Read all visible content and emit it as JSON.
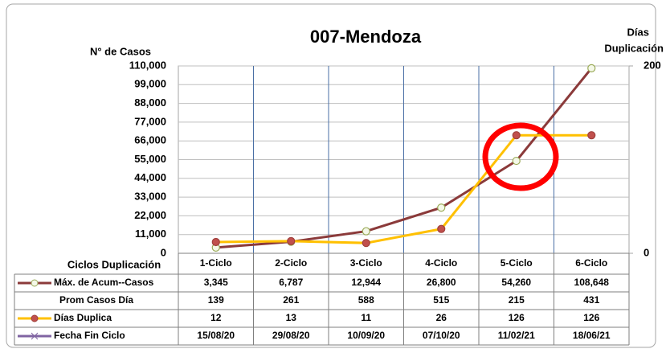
{
  "chart_data": {
    "type": "line",
    "title": "007-Mendoza",
    "ylabel": "N° de Casos",
    "y2label": [
      "Días",
      "Duplicación"
    ],
    "table_header": "Ciclos Duplicación",
    "categories": [
      "1-Ciclo",
      "2-Ciclo",
      "3-Ciclo",
      "4-Ciclo",
      "5-Ciclo",
      "6-Ciclo"
    ],
    "ylim": [
      0,
      110000
    ],
    "yticks": [
      0,
      {
        "value": 11000,
        "label": "11,000"
      },
      {
        "value": 22000,
        "label": "22,000"
      },
      {
        "value": 33000,
        "label": "33,000"
      },
      {
        "value": 44000,
        "label": "44,000"
      },
      {
        "value": 55000,
        "label": "55,000"
      },
      {
        "value": 66000,
        "label": "66,000"
      },
      {
        "value": 77000,
        "label": "77,000"
      },
      {
        "value": 88000,
        "label": "88,000"
      },
      {
        "value": 99000,
        "label": "99,000"
      },
      {
        "value": 110000,
        "label": "110,000"
      }
    ],
    "y2lim": [
      0,
      200
    ],
    "y2ticks": [
      0,
      200
    ],
    "grid": true,
    "series": [
      {
        "name": "Máx. de Acum--Casos",
        "color": "#8b3a3a",
        "marker_color": "#f4f8e8",
        "marker_edge": "#9bab59",
        "values": [
          3345,
          6787,
          12944,
          26800,
          54260,
          108648
        ],
        "value_labels": [
          "3,345",
          "6,787",
          "12,944",
          "26,800",
          "54,260",
          "108,648"
        ]
      },
      {
        "name": "Prom Casos Día",
        "values": [
          139,
          261,
          588,
          515,
          215,
          431
        ]
      },
      {
        "name": "Días Duplica",
        "color": "#ffc000",
        "marker_color": "#c0504d",
        "marker_edge": "#a0403d",
        "axis": "y2",
        "values": [
          12,
          13,
          11,
          26,
          126,
          126
        ]
      },
      {
        "name": "Fecha Fin Ciclo",
        "color": "#8064a2",
        "values": [
          "15/08/20",
          "29/08/20",
          "10/09/20",
          "07/10/20",
          "11/02/21",
          "18/06/21"
        ]
      }
    ]
  }
}
